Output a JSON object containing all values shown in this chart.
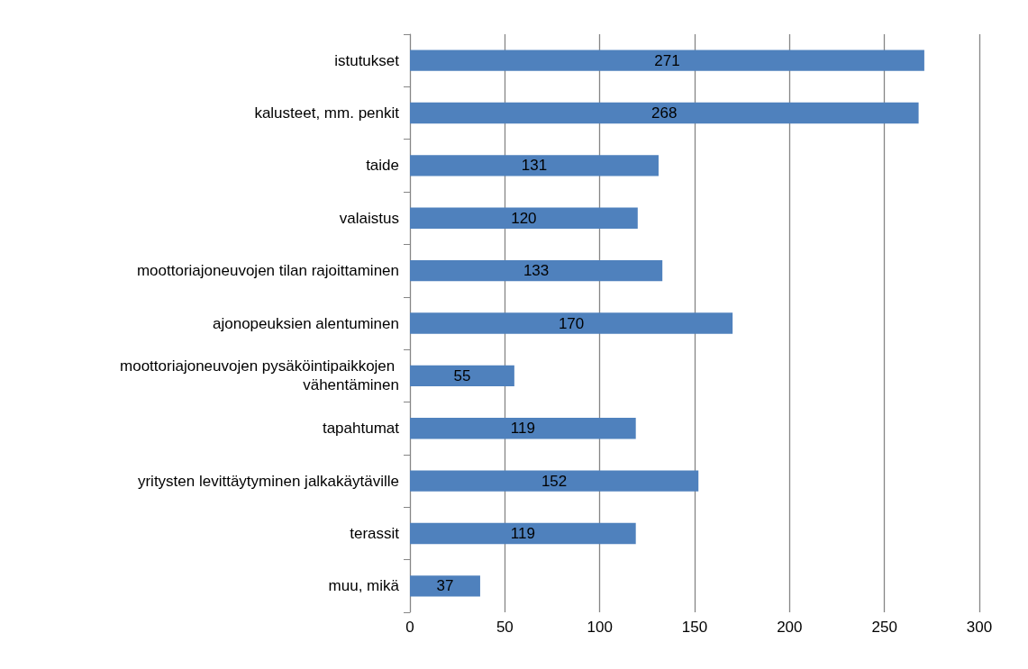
{
  "chart_data": {
    "type": "bar",
    "orientation": "horizontal",
    "categories": [
      "istutukset",
      "kalusteet, mm. penkit",
      "taide",
      "valaistus",
      "moottoriajoneuvojen tilan rajoittaminen",
      "ajonopeuksien alentuminen",
      "moottoriajoneuvojen pysäköintipaikkojen vähentäminen",
      "tapahtumat",
      "yritysten levittäytyminen jalkakäytäville",
      "terassit",
      "muu, mikä"
    ],
    "values": [
      271,
      268,
      131,
      120,
      133,
      170,
      55,
      119,
      152,
      119,
      37
    ],
    "color": "#4f81bd",
    "xlim": [
      0,
      300
    ],
    "xticks": [
      0,
      50,
      100,
      150,
      200,
      250,
      300
    ],
    "grid": "x",
    "data_labels": true
  }
}
